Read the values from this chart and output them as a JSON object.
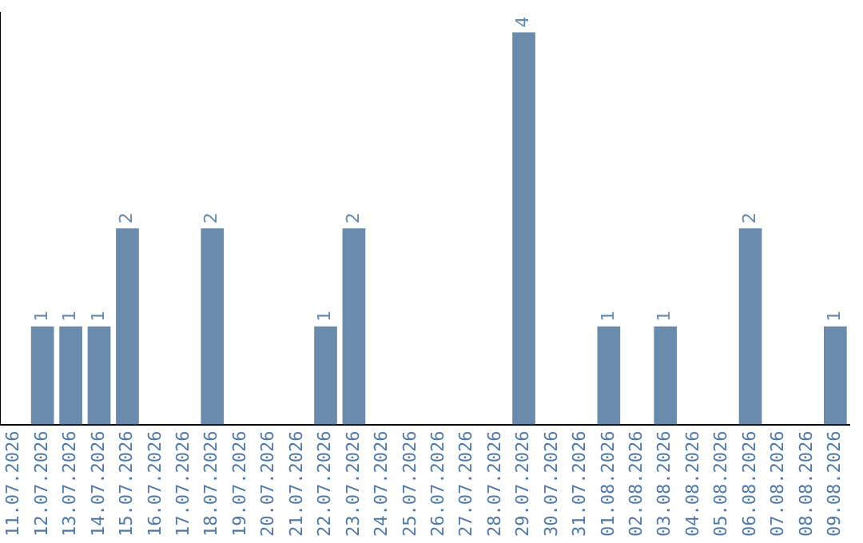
{
  "chart_data": {
    "type": "bar",
    "categories": [
      "11.07.2026",
      "12.07.2026",
      "13.07.2026",
      "14.07.2026",
      "15.07.2026",
      "16.07.2026",
      "17.07.2026",
      "18.07.2026",
      "19.07.2026",
      "20.07.2026",
      "21.07.2026",
      "22.07.2026",
      "23.07.2026",
      "24.07.2026",
      "25.07.2026",
      "26.07.2026",
      "27.07.2026",
      "28.07.2026",
      "29.07.2026",
      "30.07.2026",
      "31.07.2026",
      "01.08.2026",
      "02.08.2026",
      "03.08.2026",
      "04.08.2026",
      "05.08.2026",
      "06.08.2026",
      "07.08.2026",
      "08.08.2026",
      "09.08.2026"
    ],
    "values": [
      0,
      1,
      1,
      1,
      2,
      0,
      0,
      2,
      0,
      0,
      0,
      1,
      2,
      0,
      0,
      0,
      0,
      0,
      4,
      0,
      0,
      1,
      0,
      1,
      0,
      0,
      2,
      0,
      0,
      1
    ],
    "value_labels": [
      null,
      "1",
      "1",
      "1",
      "2",
      null,
      null,
      "2",
      null,
      null,
      null,
      "1",
      "2",
      null,
      null,
      null,
      null,
      null,
      "4",
      null,
      null,
      "1",
      null,
      "1",
      null,
      null,
      "2",
      null,
      null,
      "1"
    ],
    "color": "#6a8bab",
    "ylim": [
      0,
      4.2
    ],
    "tick_labels": "x",
    "grid": false,
    "legend": false
  }
}
